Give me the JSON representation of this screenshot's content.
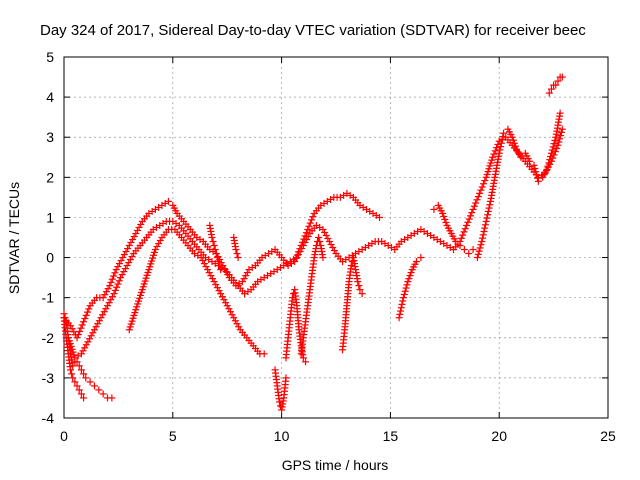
{
  "chart_data": {
    "type": "scatter",
    "title": "Day 324 of 2017, Sidereal Day-to-day VTEC variation (SDTVAR) for receiver beec",
    "xlabel": "GPS time / hours",
    "ylabel": "SDTVAR / TECUs",
    "xlim": [
      0,
      25
    ],
    "ylim": [
      -4,
      5
    ],
    "xticks": [
      "0",
      "5",
      "10",
      "15",
      "20",
      "25"
    ],
    "yticks": [
      "-4",
      "-3",
      "-2",
      "-1",
      "0",
      "1",
      "2",
      "3",
      "4",
      "5"
    ],
    "grid": true,
    "marker": "+",
    "color": "#ff0000",
    "series": [
      {
        "x": [
          0,
          0.1,
          0.2,
          0.3,
          0.4,
          0.5,
          0.6,
          0.7,
          0.8,
          0.9,
          1.0,
          1.2,
          1.4,
          1.6,
          1.8,
          2.0,
          2.2
        ],
        "y": [
          -1.4,
          -1.6,
          -2.0,
          -2.4,
          -2.7,
          -2.6,
          -2.6,
          -2.7,
          -2.8,
          -2.9,
          -3.0,
          -3.1,
          -3.2,
          -3.3,
          -3.4,
          -3.5,
          -3.5
        ]
      },
      {
        "x": [
          0,
          0.1,
          0.2,
          0.3,
          0.4,
          0.5,
          0.6,
          0.7,
          0.8,
          0.9
        ],
        "y": [
          -1.5,
          -2.0,
          -2.4,
          -2.8,
          -3.0,
          -3.1,
          -3.2,
          -3.3,
          -3.4,
          -3.5
        ]
      },
      {
        "x": [
          0,
          0.3,
          0.6,
          0.9,
          1.2,
          1.5,
          1.8,
          2.1,
          2.4,
          2.7,
          3.0,
          3.3,
          3.6,
          3.9,
          4.2,
          4.5,
          4.8,
          5.0,
          5.2,
          5.5,
          5.8,
          6.1,
          6.4,
          6.7,
          7.0,
          7.3,
          7.6,
          7.9,
          8.2,
          8.5,
          8.8,
          9.1,
          9.4,
          9.7,
          10.0,
          10.3,
          10.6,
          10.9,
          11.2,
          11.5,
          11.8,
          12.1,
          12.4,
          12.7,
          13.0,
          13.3,
          13.6,
          13.9,
          14.2,
          14.5
        ],
        "y": [
          -1.5,
          -1.7,
          -2.0,
          -1.6,
          -1.2,
          -1.0,
          -1.0,
          -0.7,
          -0.3,
          0.0,
          0.3,
          0.6,
          0.9,
          1.1,
          1.2,
          1.3,
          1.4,
          1.3,
          1.1,
          0.9,
          0.7,
          0.5,
          0.4,
          0.2,
          0.1,
          -0.2,
          -0.5,
          -0.7,
          -0.6,
          -0.3,
          -0.2,
          0.0,
          0.1,
          0.2,
          0.0,
          -0.2,
          -0.1,
          0.3,
          0.7,
          1.1,
          1.3,
          1.4,
          1.5,
          1.5,
          1.6,
          1.5,
          1.3,
          1.2,
          1.1,
          1.0
        ]
      },
      {
        "x": [
          0.2,
          0.5,
          0.8,
          1.1,
          1.4,
          1.7,
          2.0,
          2.3,
          2.6,
          2.9,
          3.2,
          3.5,
          3.8,
          4.1,
          4.4,
          4.7,
          5.0,
          5.3,
          5.6,
          5.9,
          6.2,
          6.5,
          6.8,
          7.1,
          7.4,
          7.7,
          8.0,
          8.3,
          8.6,
          8.9,
          9.2,
          9.5,
          9.8,
          10.1,
          10.4,
          10.7,
          11.0,
          11.3,
          11.6,
          11.9,
          12.2,
          12.5,
          12.8,
          13.1,
          13.4,
          13.7,
          14.0,
          14.3,
          14.6,
          14.9,
          15.2,
          15.5,
          15.8,
          16.1,
          16.4,
          16.7,
          17.0,
          17.3,
          17.6,
          17.9,
          18.2,
          18.5,
          18.8,
          19.1,
          19.4,
          19.7,
          20.0,
          20.3,
          20.6,
          20.9,
          21.2,
          21.5,
          21.8,
          22.1,
          22.4,
          22.7,
          22.9
        ],
        "y": [
          -2.0,
          -2.5,
          -2.4,
          -2.1,
          -1.8,
          -1.5,
          -1.2,
          -0.9,
          -0.5,
          -0.2,
          0.1,
          0.3,
          0.5,
          0.7,
          0.8,
          0.9,
          0.9,
          0.8,
          0.6,
          0.4,
          0.2,
          0.0,
          -0.1,
          -0.2,
          -0.3,
          -0.5,
          -0.7,
          -0.9,
          -0.8,
          -0.6,
          -0.5,
          -0.4,
          -0.3,
          -0.2,
          -0.1,
          0.0,
          0.3,
          0.6,
          0.8,
          0.7,
          0.4,
          0.1,
          -0.1,
          0.0,
          0.1,
          0.2,
          0.3,
          0.4,
          0.4,
          0.3,
          0.2,
          0.4,
          0.5,
          0.6,
          0.7,
          0.6,
          0.5,
          0.4,
          0.3,
          0.2,
          0.4,
          0.8,
          1.2,
          1.6,
          2.0,
          2.5,
          2.9,
          3.0,
          2.8,
          2.6,
          2.4,
          2.2,
          2.0,
          2.1,
          2.4,
          2.8,
          3.2
        ]
      },
      {
        "x": [
          3.0,
          3.3,
          3.6,
          3.9,
          4.2,
          4.5,
          4.8,
          5.1,
          5.4,
          5.7,
          6.0,
          6.3,
          6.6,
          6.9,
          7.2,
          7.5,
          7.8,
          8.1,
          8.4,
          8.7,
          9.0,
          9.2
        ],
        "y": [
          -1.8,
          -1.3,
          -0.8,
          -0.3,
          0.2,
          0.5,
          0.7,
          0.7,
          0.5,
          0.3,
          0.1,
          0.0,
          -0.3,
          -0.6,
          -0.9,
          -1.2,
          -1.5,
          -1.8,
          -2.0,
          -2.2,
          -2.4,
          -2.4
        ]
      },
      {
        "x": [
          6.7,
          6.8,
          6.9,
          7.0,
          7.1,
          7.2
        ],
        "y": [
          0.8,
          0.5,
          0.3,
          0.1,
          -0.1,
          -0.3
        ]
      },
      {
        "x": [
          7.8,
          7.9,
          8.0
        ],
        "y": [
          0.5,
          0.2,
          0.0
        ]
      },
      {
        "x": [
          9.7,
          9.8,
          9.9,
          10.0,
          10.1,
          10.2
        ],
        "y": [
          -2.8,
          -3.2,
          -3.6,
          -3.8,
          -3.5,
          -3.0
        ]
      },
      {
        "x": [
          10.2,
          10.3,
          10.4,
          10.5,
          10.6,
          10.7,
          10.8,
          10.9,
          11.0,
          11.1
        ],
        "y": [
          -2.5,
          -2.0,
          -1.5,
          -1.0,
          -0.8,
          -1.2,
          -1.8,
          -2.2,
          -2.5,
          -2.6
        ]
      },
      {
        "x": [
          10.9,
          11.0,
          11.1,
          11.2,
          11.3,
          11.4,
          11.5,
          11.6,
          11.7,
          11.8,
          11.9
        ],
        "y": [
          -2.4,
          -2.0,
          -1.6,
          -1.2,
          -0.8,
          -0.4,
          0.0,
          0.3,
          0.5,
          0.3,
          0.0
        ]
      },
      {
        "x": [
          12.8,
          12.9,
          13.0,
          13.1,
          13.2,
          13.3,
          13.4,
          13.5,
          13.6,
          13.7
        ],
        "y": [
          -2.3,
          -1.8,
          -1.2,
          -0.6,
          -0.2,
          0.0,
          -0.3,
          -0.6,
          -0.8,
          -0.9
        ]
      },
      {
        "x": [
          15.4,
          15.6,
          15.8,
          16.0,
          16.2,
          16.4
        ],
        "y": [
          -1.5,
          -1.0,
          -0.6,
          -0.3,
          -0.1,
          0.0
        ]
      },
      {
        "x": [
          17.0,
          17.2,
          17.4,
          17.6,
          17.8,
          18.0,
          18.2,
          18.4,
          18.6,
          18.8
        ],
        "y": [
          1.2,
          1.3,
          1.1,
          0.8,
          0.6,
          0.4,
          0.3,
          0.2,
          0.1,
          0.2
        ]
      },
      {
        "x": [
          19.0,
          19.2,
          19.4,
          19.6,
          19.8,
          20.0,
          20.2,
          20.4,
          20.6,
          20.8,
          21.0,
          21.2,
          21.4,
          21.6,
          21.8,
          22.0,
          22.2,
          22.4,
          22.6,
          22.8
        ],
        "y": [
          0.0,
          0.4,
          0.9,
          1.4,
          2.0,
          2.6,
          3.1,
          3.2,
          3.0,
          2.7,
          2.5,
          2.6,
          2.4,
          2.3,
          1.9,
          2.0,
          2.2,
          2.6,
          3.0,
          3.6
        ]
      },
      {
        "x": [
          22.3,
          22.4,
          22.5,
          22.6,
          22.7,
          22.8,
          22.9
        ],
        "y": [
          4.1,
          4.2,
          4.3,
          4.3,
          4.4,
          4.5,
          4.5
        ]
      }
    ]
  }
}
